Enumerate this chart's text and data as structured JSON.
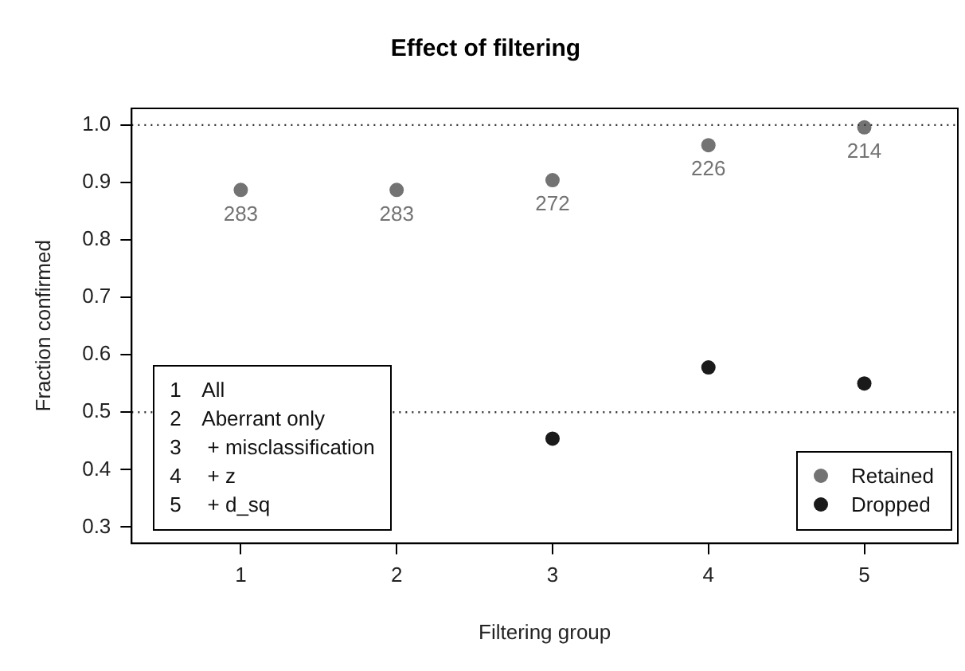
{
  "chart_data": {
    "type": "scatter",
    "title": "Effect of filtering",
    "xlabel": "Filtering group",
    "ylabel": "Fraction confirmed",
    "x": [
      1,
      2,
      3,
      4,
      5
    ],
    "series": [
      {
        "name": "Retained",
        "color": "#737373",
        "values": [
          0.887,
          0.887,
          0.904,
          0.965,
          0.996
        ]
      },
      {
        "name": "Dropped",
        "color": "#1a1a1a",
        "values": [
          null,
          null,
          0.454,
          0.578,
          0.55
        ]
      }
    ],
    "xlim": [
      0.3,
      5.6
    ],
    "xticks": [
      1,
      2,
      3,
      4,
      5
    ],
    "ylim": [
      0.272,
      1.029
    ],
    "yticks": [
      0.3,
      0.4,
      0.5,
      0.6,
      0.7,
      0.8,
      0.9,
      {
        "value": 1,
        "label": "1.0"
      }
    ],
    "ref_lines": [
      {
        "axis": "y",
        "value": 0.5,
        "line_style": "dotted"
      },
      {
        "axis": "y",
        "value": 1,
        "line_style": "dotted"
      }
    ],
    "annotations": [
      "1\tAll",
      "2\tAberrant only",
      "3\t + misclassification",
      "4\t + z",
      "5\t + d_sq",
      {
        "text": "283",
        "x": 1,
        "y": 0.887
      },
      {
        "text": "283",
        "x": 2,
        "y": 0.887
      },
      {
        "text": "272",
        "x": 3,
        "y": 0.904
      },
      {
        "text": "226",
        "x": 4,
        "y": 0.965
      },
      {
        "text": "214",
        "x": 5,
        "y": 0.996
      }
    ],
    "grid": false,
    "legend": "bottom right",
    "marker": "circle"
  }
}
